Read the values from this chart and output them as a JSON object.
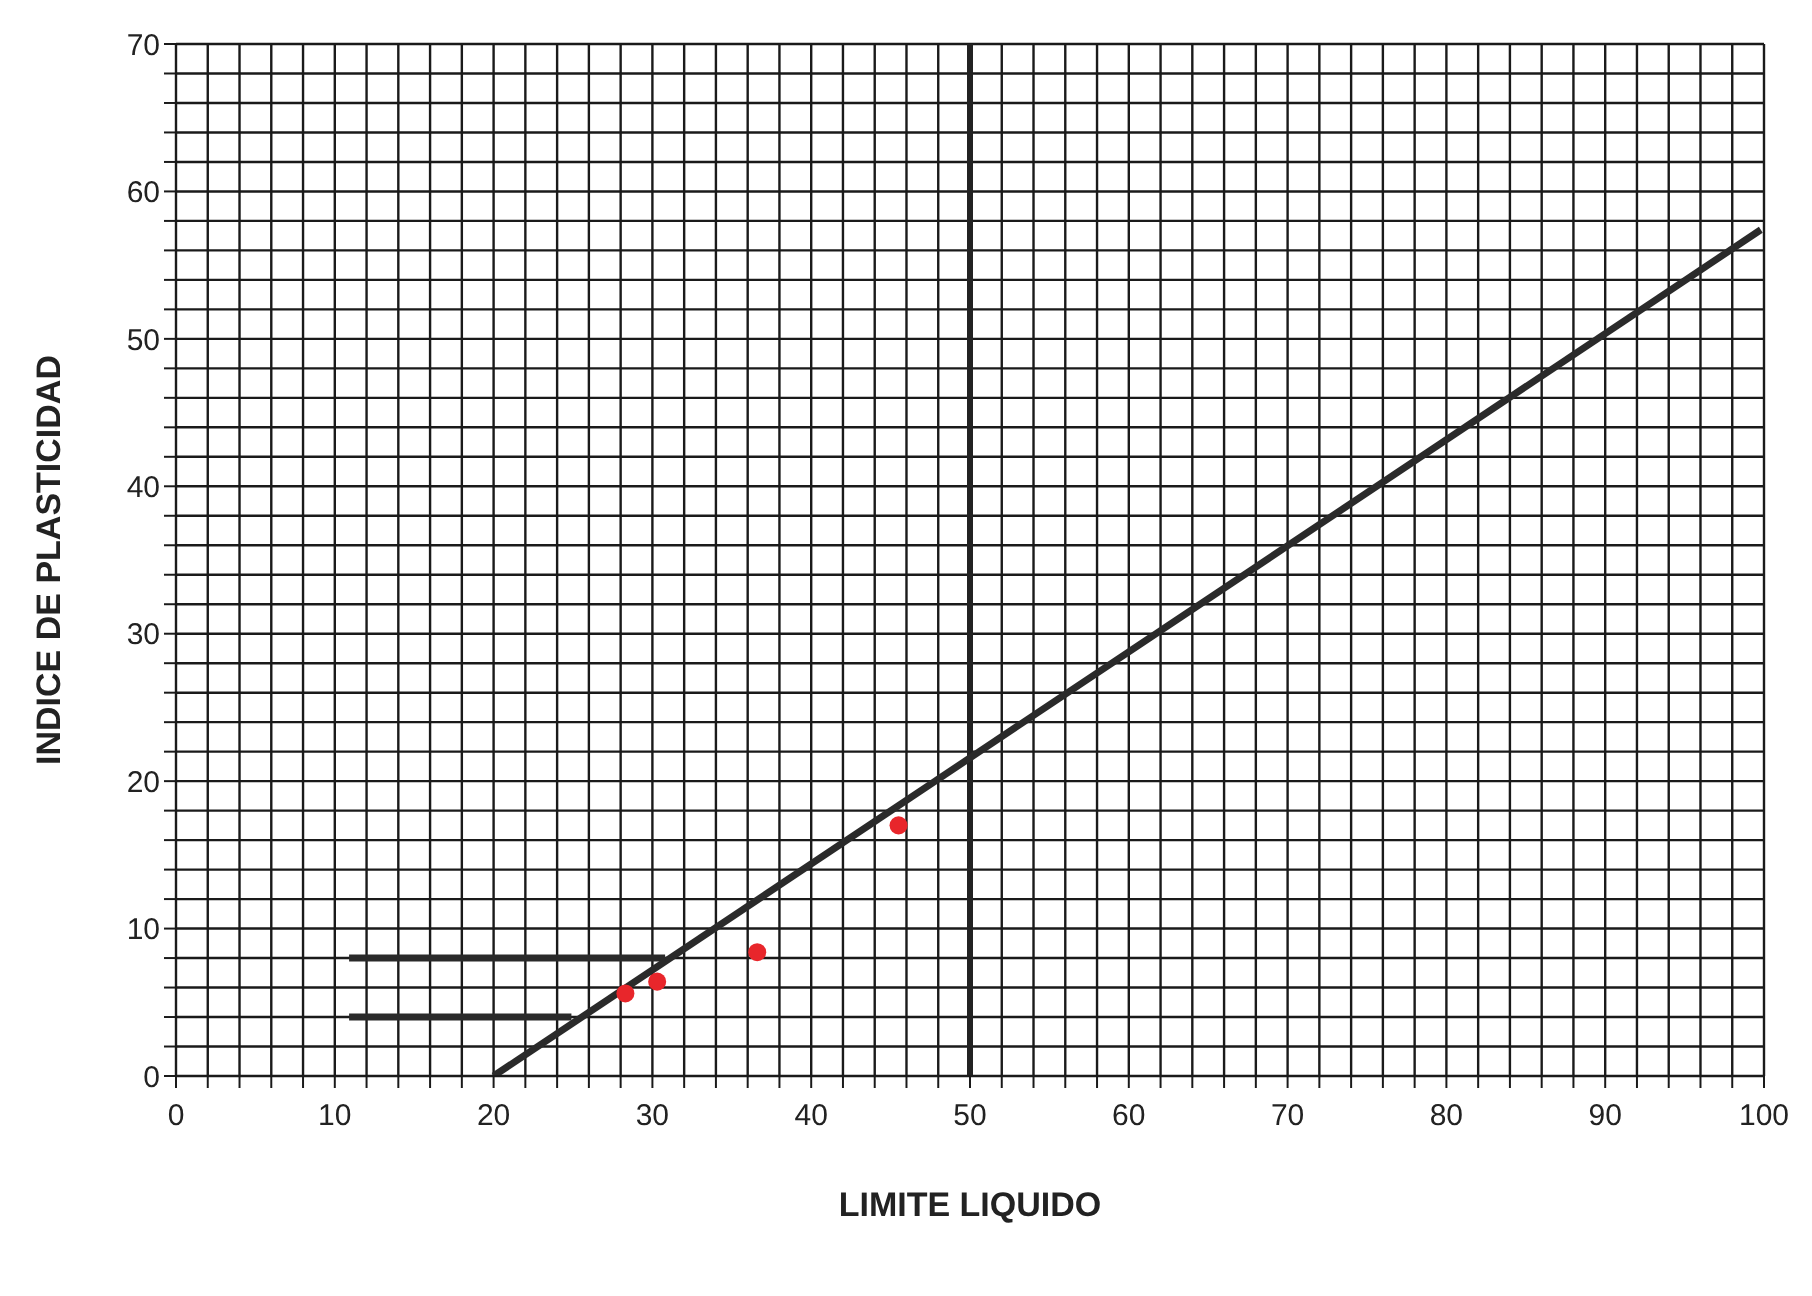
{
  "chart_data": {
    "type": "scatter",
    "xlabel": "LIMITE LIQUIDO",
    "ylabel": "INDICE DE PLASTICIDAD",
    "xlim": [
      0,
      100
    ],
    "ylim": [
      0,
      70
    ],
    "xticks": [
      0,
      {
        "value": 2,
        "label": null
      },
      {
        "value": 4,
        "label": null
      },
      {
        "value": 6,
        "label": null
      },
      {
        "value": 8,
        "label": null
      },
      10,
      {
        "value": 12,
        "label": null
      },
      {
        "value": 14,
        "label": null
      },
      {
        "value": 16,
        "label": null
      },
      {
        "value": 18,
        "label": null
      },
      20,
      {
        "value": 22,
        "label": null
      },
      {
        "value": 24,
        "label": null
      },
      {
        "value": 26,
        "label": null
      },
      {
        "value": 28,
        "label": null
      },
      30,
      {
        "value": 32,
        "label": null
      },
      {
        "value": 34,
        "label": null
      },
      {
        "value": 36,
        "label": null
      },
      {
        "value": 38,
        "label": null
      },
      40,
      {
        "value": 42,
        "label": null
      },
      {
        "value": 44,
        "label": null
      },
      {
        "value": 46,
        "label": null
      },
      {
        "value": 48,
        "label": null
      },
      50,
      {
        "value": 52,
        "label": null
      },
      {
        "value": 54,
        "label": null
      },
      {
        "value": 56,
        "label": null
      },
      {
        "value": 58,
        "label": null
      },
      60,
      {
        "value": 62,
        "label": null
      },
      {
        "value": 64,
        "label": null
      },
      {
        "value": 66,
        "label": null
      },
      {
        "value": 68,
        "label": null
      },
      70,
      {
        "value": 72,
        "label": null
      },
      {
        "value": 74,
        "label": null
      },
      {
        "value": 76,
        "label": null
      },
      {
        "value": 78,
        "label": null
      },
      80,
      {
        "value": 82,
        "label": null
      },
      {
        "value": 84,
        "label": null
      },
      {
        "value": 86,
        "label": null
      },
      {
        "value": 88,
        "label": null
      },
      90,
      {
        "value": 92,
        "label": null
      },
      {
        "value": 94,
        "label": null
      },
      {
        "value": 96,
        "label": null
      },
      {
        "value": 98,
        "label": null
      },
      100
    ],
    "yticks": [
      0,
      {
        "value": 2,
        "label": null
      },
      {
        "value": 4,
        "label": null
      },
      {
        "value": 6,
        "label": null
      },
      {
        "value": 8,
        "label": null
      },
      10,
      {
        "value": 12,
        "label": null
      },
      {
        "value": 14,
        "label": null
      },
      {
        "value": 16,
        "label": null
      },
      {
        "value": 18,
        "label": null
      },
      20,
      {
        "value": 22,
        "label": null
      },
      {
        "value": 24,
        "label": null
      },
      {
        "value": 26,
        "label": null
      },
      {
        "value": 28,
        "label": null
      },
      30,
      {
        "value": 32,
        "label": null
      },
      {
        "value": 34,
        "label": null
      },
      {
        "value": 36,
        "label": null
      },
      {
        "value": 38,
        "label": null
      },
      40,
      {
        "value": 42,
        "label": null
      },
      {
        "value": 44,
        "label": null
      },
      {
        "value": 46,
        "label": null
      },
      {
        "value": 48,
        "label": null
      },
      50,
      {
        "value": 52,
        "label": null
      },
      {
        "value": 54,
        "label": null
      },
      {
        "value": 56,
        "label": null
      },
      {
        "value": 58,
        "label": null
      },
      60,
      {
        "value": 62,
        "label": null
      },
      {
        "value": 64,
        "label": null
      },
      {
        "value": 66,
        "label": null
      },
      {
        "value": 68,
        "label": null
      },
      70
    ],
    "grid": true,
    "ref_lines": [
      {
        "axis": "x",
        "value": 50,
        "color": "#222222"
      }
    ],
    "series": [
      {
        "color": "#e8262b",
        "marker": "circle",
        "x": [
          28.3,
          30.3,
          36.6,
          45.5
        ],
        "values": [
          5.6,
          6.4,
          8.4,
          17.0
        ]
      },
      {
        "type": "line",
        "color": "#2a2a2a",
        "marker": "none",
        "x": [
          20,
          99.8
        ],
        "values": [
          0,
          57.4
        ]
      },
      {
        "type": "line",
        "color": "#2a2a2a",
        "marker": "none",
        "x": [
          10.9,
          30.8
        ],
        "values": [
          8,
          8
        ]
      },
      {
        "type": "line",
        "color": "#2a2a2a",
        "marker": "none",
        "x": [
          10.9,
          24.9
        ],
        "values": [
          4,
          4
        ]
      }
    ]
  }
}
